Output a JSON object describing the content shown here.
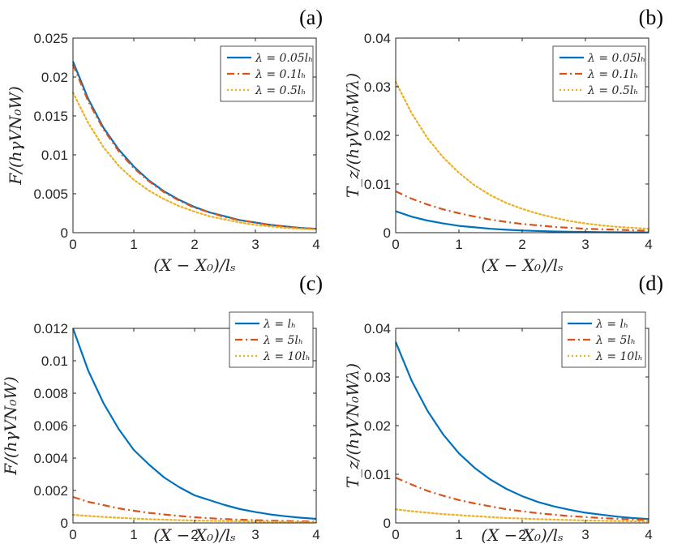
{
  "chart_data": [
    {
      "id": "a",
      "panel_label": "(a)",
      "type": "line",
      "xlabel": "(X − X₀)/lₛ",
      "ylabel": "F/(hγVN₀W)",
      "xlim": [
        0,
        4
      ],
      "ylim": [
        0,
        0.025
      ],
      "xticks": [
        0,
        1,
        2,
        3,
        4
      ],
      "xtick_labels": [
        "0",
        "1",
        "2",
        "3",
        "4"
      ],
      "yticks": [
        0,
        0.005,
        0.01,
        0.015,
        0.02,
        0.025
      ],
      "ytick_labels": [
        "0",
        "0.005",
        "0.01",
        "0.015",
        "0.02",
        "0.025"
      ],
      "legend_position": "top-right",
      "x": [
        0,
        0.25,
        0.5,
        0.75,
        1,
        1.25,
        1.5,
        1.75,
        2,
        2.25,
        2.5,
        2.75,
        3,
        3.25,
        3.5,
        3.75,
        4
      ],
      "series": [
        {
          "name": "λ = 0.05lₕ",
          "color": "#0072BD",
          "style": "solid",
          "values": [
            0.022,
            0.0172,
            0.0135,
            0.0107,
            0.0085,
            0.0067,
            0.0053,
            0.0042,
            0.0033,
            0.0026,
            0.0021,
            0.0016,
            0.0013,
            0.001,
            0.0008,
            0.0006,
            0.0005
          ]
        },
        {
          "name": "λ = 0.1lₕ",
          "color": "#D95319",
          "style": "dashdot",
          "values": [
            0.0216,
            0.0169,
            0.0133,
            0.0105,
            0.0083,
            0.0066,
            0.0052,
            0.0041,
            0.0032,
            0.0026,
            0.002,
            0.0016,
            0.0013,
            0.001,
            0.0008,
            0.0006,
            0.0005
          ]
        },
        {
          "name": "λ = 0.5lₕ",
          "color": "#EDB120",
          "style": "dotted",
          "values": [
            0.018,
            0.0141,
            0.011,
            0.0086,
            0.0068,
            0.0054,
            0.0043,
            0.0034,
            0.0027,
            0.0021,
            0.0017,
            0.0013,
            0.001,
            0.0008,
            0.0006,
            0.0005,
            0.0004
          ]
        }
      ]
    },
    {
      "id": "b",
      "panel_label": "(b)",
      "type": "line",
      "xlabel": "(X − X₀)/lₛ",
      "ylabel": "T_z/(hγVN₀Wλ)",
      "xlim": [
        0,
        4
      ],
      "ylim": [
        0,
        0.04
      ],
      "xticks": [
        0,
        1,
        2,
        3,
        4
      ],
      "xtick_labels": [
        "0",
        "1",
        "2",
        "3",
        "4"
      ],
      "yticks": [
        0,
        0.01,
        0.02,
        0.03,
        0.04
      ],
      "ytick_labels": [
        "0",
        "0.01",
        "0.02",
        "0.03",
        "0.04"
      ],
      "legend_position": "top-right",
      "x": [
        0,
        0.25,
        0.5,
        0.75,
        1,
        1.25,
        1.5,
        1.75,
        2,
        2.25,
        2.5,
        2.75,
        3,
        3.25,
        3.5,
        3.75,
        4
      ],
      "series": [
        {
          "name": "λ = 0.05lₕ",
          "color": "#0072BD",
          "style": "solid",
          "values": [
            0.0044,
            0.0033,
            0.0025,
            0.0019,
            0.0014,
            0.0011,
            0.0008,
            0.0006,
            0.00045,
            0.00034,
            0.00025,
            0.00019,
            0.00014,
            0.00011,
            8e-05,
            6e-05,
            5e-05
          ]
        },
        {
          "name": "λ = 0.1lₕ",
          "color": "#D95319",
          "style": "dashdot",
          "values": [
            0.0085,
            0.007,
            0.0058,
            0.0048,
            0.004,
            0.0033,
            0.0027,
            0.0022,
            0.0018,
            0.0015,
            0.0012,
            0.001,
            0.0008,
            0.0007,
            0.0006,
            0.0005,
            0.0004
          ]
        },
        {
          "name": "λ = 0.5lₕ",
          "color": "#EDB120",
          "style": "dotted",
          "values": [
            0.031,
            0.0246,
            0.0195,
            0.0155,
            0.0123,
            0.0097,
            0.0077,
            0.0061,
            0.0049,
            0.0039,
            0.0031,
            0.0024,
            0.0019,
            0.0015,
            0.0012,
            0.001,
            0.0008
          ]
        }
      ]
    },
    {
      "id": "c",
      "panel_label": "(c)",
      "type": "line",
      "xlabel": "(X − X₀)/lₛ",
      "ylabel": "F/(hγVN₀W)",
      "xlim": [
        0,
        4
      ],
      "ylim": [
        0,
        0.012
      ],
      "xticks": [
        0,
        1,
        2,
        3,
        4
      ],
      "xtick_labels": [
        "0",
        "1",
        "2",
        "3",
        "4"
      ],
      "yticks": [
        0,
        0.002,
        0.004,
        0.006,
        0.008,
        0.01,
        0.012
      ],
      "ytick_labels": [
        "0",
        "0.002",
        "0.004",
        "0.006",
        "0.008",
        "0.01",
        "0.012"
      ],
      "legend_position": "top-right",
      "x": [
        0,
        0.25,
        0.5,
        0.75,
        1,
        1.25,
        1.5,
        1.75,
        2,
        2.25,
        2.5,
        2.75,
        3,
        3.25,
        3.5,
        3.75,
        4
      ],
      "series": [
        {
          "name": "λ = lₕ",
          "color": "#0072BD",
          "style": "solid",
          "values": [
            0.012,
            0.0094,
            0.0074,
            0.0058,
            0.0045,
            0.0036,
            0.0028,
            0.0022,
            0.0017,
            0.0014,
            0.0011,
            0.00085,
            0.00067,
            0.00052,
            0.00041,
            0.00032,
            0.00025
          ]
        },
        {
          "name": "λ = 5lₕ",
          "color": "#D95319",
          "style": "dashdot",
          "values": [
            0.0016,
            0.0013,
            0.0011,
            0.0009,
            0.00075,
            0.00062,
            0.00052,
            0.00043,
            0.00035,
            0.00029,
            0.00024,
            0.0002,
            0.00017,
            0.00014,
            0.00012,
            0.0001,
            8e-05
          ]
        },
        {
          "name": "λ = 10lₕ",
          "color": "#EDB120",
          "style": "dotted",
          "values": [
            0.0005,
            0.00043,
            0.00037,
            0.00032,
            0.00027,
            0.00023,
            0.0002,
            0.00017,
            0.00015,
            0.00013,
            0.00011,
            0.0001,
            8e-05,
            7e-05,
            6e-05,
            5e-05,
            4e-05
          ]
        }
      ]
    },
    {
      "id": "d",
      "panel_label": "(d)",
      "type": "line",
      "xlabel": "(X − X₀)/lₛ",
      "ylabel": "T_z/(hγVN₀Wλ)",
      "xlim": [
        0,
        4
      ],
      "ylim": [
        0,
        0.04
      ],
      "xticks": [
        0,
        1,
        2,
        3,
        4
      ],
      "xtick_labels": [
        "0",
        "1",
        "2",
        "3",
        "4"
      ],
      "yticks": [
        0,
        0.01,
        0.02,
        0.03,
        0.04
      ],
      "ytick_labels": [
        "0",
        "0.01",
        "0.02",
        "0.03",
        "0.04"
      ],
      "legend_position": "top-right",
      "x": [
        0,
        0.25,
        0.5,
        0.75,
        1,
        1.25,
        1.5,
        1.75,
        2,
        2.25,
        2.5,
        2.75,
        3,
        3.25,
        3.5,
        3.75,
        4
      ],
      "series": [
        {
          "name": "λ = lₕ",
          "color": "#0072BD",
          "style": "solid",
          "values": [
            0.0372,
            0.0293,
            0.0231,
            0.0182,
            0.0143,
            0.0113,
            0.0089,
            0.007,
            0.0055,
            0.0043,
            0.0034,
            0.0027,
            0.0021,
            0.0017,
            0.0013,
            0.001,
            0.0008
          ]
        },
        {
          "name": "λ = 5lₕ",
          "color": "#D95319",
          "style": "dashdot",
          "values": [
            0.0093,
            0.0079,
            0.0066,
            0.0056,
            0.0047,
            0.004,
            0.0034,
            0.0028,
            0.0024,
            0.002,
            0.0017,
            0.0014,
            0.0012,
            0.001,
            0.00085,
            0.00072,
            0.0006
          ]
        },
        {
          "name": "λ = 10lₕ",
          "color": "#EDB120",
          "style": "dotted",
          "values": [
            0.0028,
            0.0024,
            0.0021,
            0.0018,
            0.0016,
            0.0014,
            0.0012,
            0.001,
            0.0009,
            0.00078,
            0.00068,
            0.00059,
            0.00051,
            0.00044,
            0.00038,
            0.00033,
            0.00029
          ]
        }
      ]
    }
  ]
}
